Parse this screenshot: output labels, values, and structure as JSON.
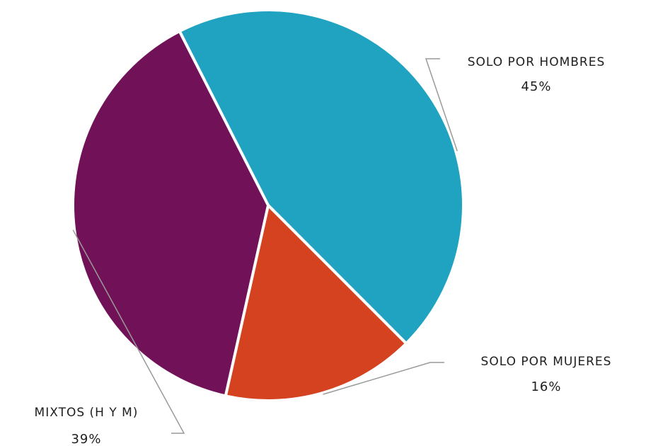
{
  "chart_data": {
    "type": "pie",
    "slices": [
      {
        "label": "SOLO POR HOMBRES",
        "value": 45,
        "value_label": "45%",
        "color": "#1fa3c1"
      },
      {
        "label": "SOLO POR MUJERES",
        "value": 16,
        "value_label": "16%",
        "color": "#d54220"
      },
      {
        "label": "MIXTOS (H Y M)",
        "value": 39,
        "value_label": "39%",
        "color": "#711258"
      }
    ]
  }
}
